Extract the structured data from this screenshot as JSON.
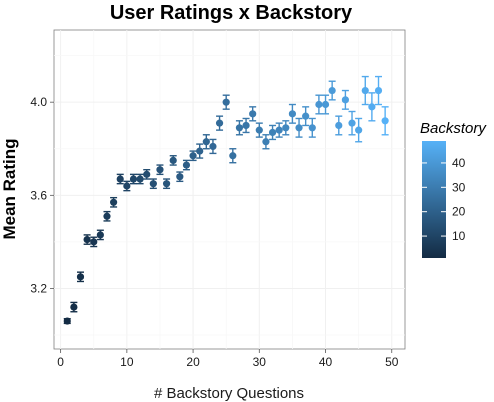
{
  "chart_data": {
    "type": "scatter",
    "title": "User Ratings x Backstory",
    "xlabel": "# Backstory Questions",
    "ylabel": "Mean Rating",
    "xlim": [
      -1,
      52
    ],
    "ylim": [
      2.94,
      4.31
    ],
    "xticks": [
      0,
      10,
      20,
      30,
      40,
      50
    ],
    "yticks": [
      3.2,
      3.6,
      4.0
    ],
    "ytick_labels": [
      "3.2",
      "3.6",
      "4.0"
    ],
    "grid": true,
    "error_bars": true,
    "color_scale": {
      "low": "#132B43",
      "high": "#56B1F7"
    },
    "legend": {
      "title": "Backstory",
      "position": "right",
      "range": [
        1,
        49
      ],
      "ticks": [
        10,
        20,
        30,
        40
      ]
    },
    "points": [
      {
        "x": 1,
        "y": 3.06,
        "err": 0.01
      },
      {
        "x": 2,
        "y": 3.12,
        "err": 0.02
      },
      {
        "x": 3,
        "y": 3.25,
        "err": 0.02
      },
      {
        "x": 4,
        "y": 3.41,
        "err": 0.02
      },
      {
        "x": 5,
        "y": 3.4,
        "err": 0.02
      },
      {
        "x": 6,
        "y": 3.43,
        "err": 0.02
      },
      {
        "x": 7,
        "y": 3.51,
        "err": 0.02
      },
      {
        "x": 8,
        "y": 3.57,
        "err": 0.02
      },
      {
        "x": 9,
        "y": 3.67,
        "err": 0.02
      },
      {
        "x": 10,
        "y": 3.64,
        "err": 0.02
      },
      {
        "x": 11,
        "y": 3.67,
        "err": 0.02
      },
      {
        "x": 12,
        "y": 3.67,
        "err": 0.02
      },
      {
        "x": 13,
        "y": 3.69,
        "err": 0.02
      },
      {
        "x": 14,
        "y": 3.65,
        "err": 0.02
      },
      {
        "x": 15,
        "y": 3.71,
        "err": 0.02
      },
      {
        "x": 16,
        "y": 3.65,
        "err": 0.02
      },
      {
        "x": 17,
        "y": 3.75,
        "err": 0.02
      },
      {
        "x": 18,
        "y": 3.68,
        "err": 0.02
      },
      {
        "x": 19,
        "y": 3.73,
        "err": 0.02
      },
      {
        "x": 20,
        "y": 3.77,
        "err": 0.02
      },
      {
        "x": 21,
        "y": 3.79,
        "err": 0.03
      },
      {
        "x": 22,
        "y": 3.83,
        "err": 0.03
      },
      {
        "x": 23,
        "y": 3.81,
        "err": 0.03
      },
      {
        "x": 24,
        "y": 3.91,
        "err": 0.03
      },
      {
        "x": 25,
        "y": 4.0,
        "err": 0.03
      },
      {
        "x": 26,
        "y": 3.77,
        "err": 0.03
      },
      {
        "x": 27,
        "y": 3.89,
        "err": 0.03
      },
      {
        "x": 28,
        "y": 3.9,
        "err": 0.03
      },
      {
        "x": 29,
        "y": 3.95,
        "err": 0.03
      },
      {
        "x": 30,
        "y": 3.88,
        "err": 0.03
      },
      {
        "x": 31,
        "y": 3.83,
        "err": 0.03
      },
      {
        "x": 32,
        "y": 3.87,
        "err": 0.03
      },
      {
        "x": 33,
        "y": 3.88,
        "err": 0.03
      },
      {
        "x": 34,
        "y": 3.89,
        "err": 0.03
      },
      {
        "x": 35,
        "y": 3.95,
        "err": 0.04
      },
      {
        "x": 36,
        "y": 3.89,
        "err": 0.04
      },
      {
        "x": 37,
        "y": 3.94,
        "err": 0.04
      },
      {
        "x": 38,
        "y": 3.89,
        "err": 0.04
      },
      {
        "x": 39,
        "y": 3.99,
        "err": 0.04
      },
      {
        "x": 40,
        "y": 3.99,
        "err": 0.04
      },
      {
        "x": 41,
        "y": 4.05,
        "err": 0.04
      },
      {
        "x": 42,
        "y": 3.9,
        "err": 0.04
      },
      {
        "x": 43,
        "y": 4.01,
        "err": 0.04
      },
      {
        "x": 44,
        "y": 3.91,
        "err": 0.05
      },
      {
        "x": 45,
        "y": 3.88,
        "err": 0.05
      },
      {
        "x": 46,
        "y": 4.05,
        "err": 0.06
      },
      {
        "x": 47,
        "y": 3.98,
        "err": 0.06
      },
      {
        "x": 48,
        "y": 4.05,
        "err": 0.06
      },
      {
        "x": 49,
        "y": 3.92,
        "err": 0.06
      }
    ]
  }
}
